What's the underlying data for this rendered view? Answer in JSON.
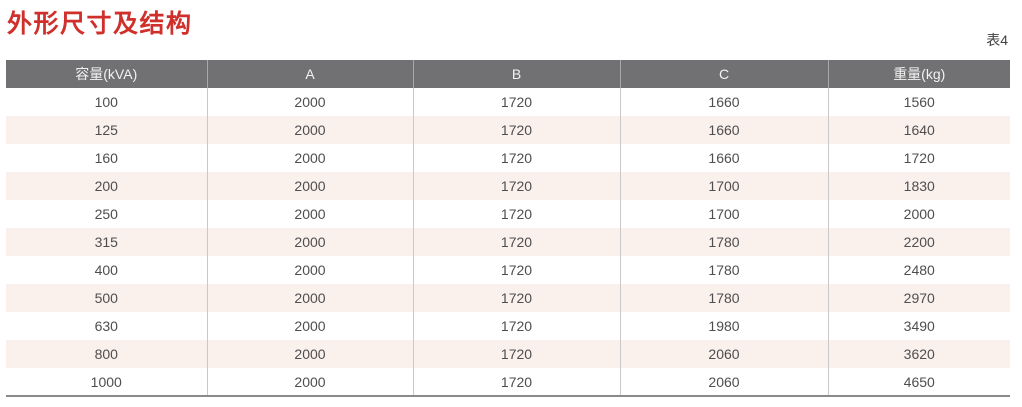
{
  "page": {
    "title": "外形尺寸及结构",
    "table_caption": "表4"
  },
  "colors": {
    "title_red": "#d0302c",
    "header_bg": "#717174",
    "header_text": "#f2f2f2",
    "row_alt_pink": "#faf0ec",
    "body_text": "#4e4e50",
    "column_divider": "#c9c9c9",
    "bottom_border": "#8a8a8c"
  },
  "table": {
    "columns": [
      "容量(kVA)",
      "A",
      "B",
      "C",
      "重量(kg)"
    ],
    "rows": [
      [
        "100",
        "2000",
        "1720",
        "1660",
        "1560"
      ],
      [
        "125",
        "2000",
        "1720",
        "1660",
        "1640"
      ],
      [
        "160",
        "2000",
        "1720",
        "1660",
        "1720"
      ],
      [
        "200",
        "2000",
        "1720",
        "1700",
        "1830"
      ],
      [
        "250",
        "2000",
        "1720",
        "1700",
        "2000"
      ],
      [
        "315",
        "2000",
        "1720",
        "1780",
        "2200"
      ],
      [
        "400",
        "2000",
        "1720",
        "1780",
        "2480"
      ],
      [
        "500",
        "2000",
        "1720",
        "1780",
        "2970"
      ],
      [
        "630",
        "2000",
        "1720",
        "1980",
        "3490"
      ],
      [
        "800",
        "2000",
        "1720",
        "2060",
        "3620"
      ],
      [
        "1000",
        "2000",
        "1720",
        "2060",
        "4650"
      ]
    ]
  },
  "chart_data": {
    "type": "table",
    "title": "外形尺寸及结构",
    "caption": "表4",
    "columns": [
      "容量(kVA)",
      "A",
      "B",
      "C",
      "重量(kg)"
    ],
    "rows": [
      [
        100,
        2000,
        1720,
        1660,
        1560
      ],
      [
        125,
        2000,
        1720,
        1660,
        1640
      ],
      [
        160,
        2000,
        1720,
        1660,
        1720
      ],
      [
        200,
        2000,
        1720,
        1700,
        1830
      ],
      [
        250,
        2000,
        1720,
        1700,
        2000
      ],
      [
        315,
        2000,
        1720,
        1780,
        2200
      ],
      [
        400,
        2000,
        1720,
        1780,
        2480
      ],
      [
        500,
        2000,
        1720,
        1780,
        2970
      ],
      [
        630,
        2000,
        1720,
        1980,
        3490
      ],
      [
        800,
        2000,
        1720,
        2060,
        3620
      ],
      [
        1000,
        2000,
        1720,
        2060,
        4650
      ]
    ]
  }
}
